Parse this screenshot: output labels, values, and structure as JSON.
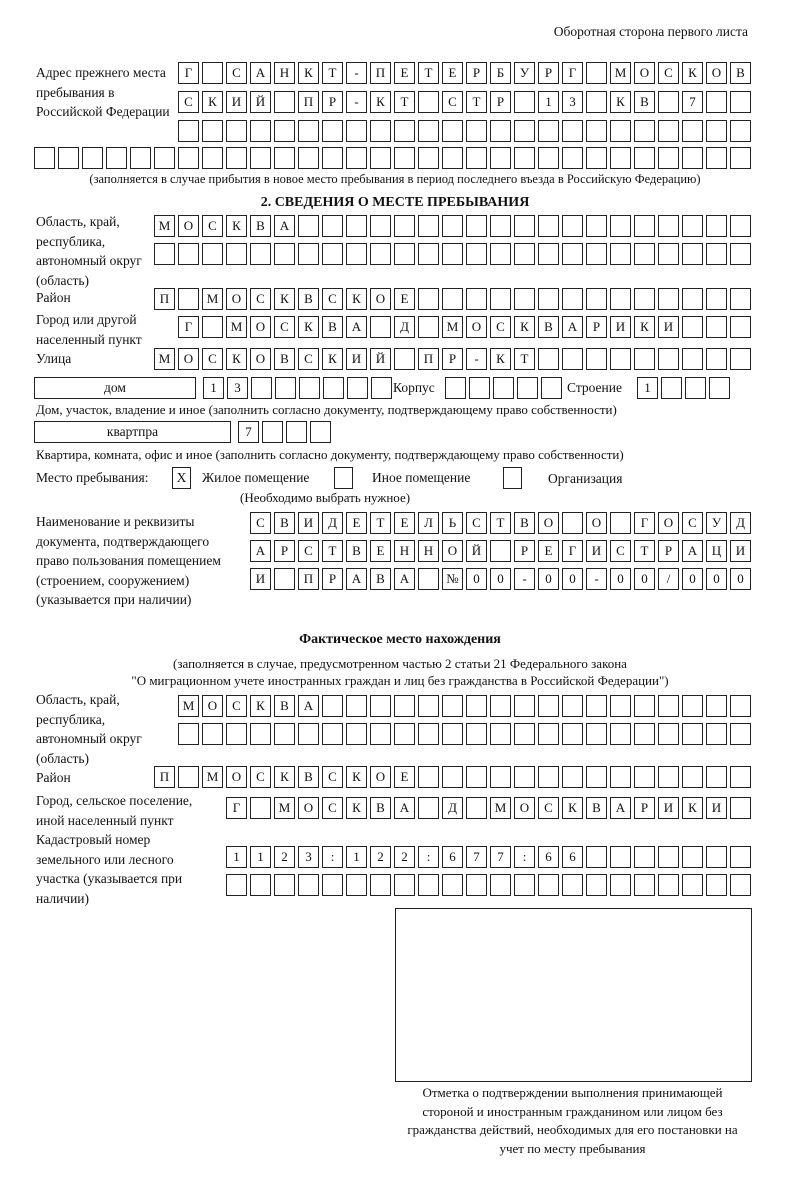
{
  "header": {
    "page_side": "Оборотная сторона первого листа"
  },
  "previous_address": {
    "label": "Адрес прежнего места пребывания в Российской Федерации",
    "rows": [
      [
        "Г",
        "",
        "С",
        "А",
        "Н",
        "К",
        "Т",
        "-",
        "П",
        "Е",
        "Т",
        "Е",
        "Р",
        "Б",
        "У",
        "Р",
        "Г",
        "",
        "М",
        "О",
        "С",
        "К",
        "О",
        "В"
      ],
      [
        "С",
        "К",
        "И",
        "Й",
        "",
        "П",
        "Р",
        "-",
        "К",
        "Т",
        "",
        "С",
        "Т",
        "Р",
        "",
        "1",
        "3",
        "",
        "К",
        "В",
        "",
        "7",
        "",
        ""
      ],
      [
        "",
        "",
        "",
        "",
        "",
        "",
        "",
        "",
        "",
        "",
        "",
        "",
        "",
        "",
        "",
        "",
        "",
        "",
        "",
        "",
        "",
        "",
        "",
        ""
      ],
      [
        "",
        "",
        "",
        "",
        "",
        "",
        "",
        "",
        "",
        "",
        "",
        "",
        "",
        "",
        "",
        "",
        "",
        "",
        "",
        "",
        "",
        "",
        "",
        "",
        "",
        "",
        "",
        "",
        "",
        ""
      ]
    ],
    "note": "(заполняется в случае прибытия в новое место пребывания в период последнего въезда в Российскую Федерацию)"
  },
  "section2": {
    "title": "2. СВЕДЕНИЯ О МЕСТЕ ПРЕБЫВАНИЯ",
    "region_label": "Область, край, республика, автономный округ (область)",
    "region_rows": [
      [
        "М",
        "О",
        "С",
        "К",
        "В",
        "А",
        "",
        "",
        "",
        "",
        "",
        "",
        "",
        "",
        "",
        "",
        "",
        "",
        "",
        "",
        "",
        "",
        "",
        "",
        ""
      ],
      [
        "",
        "",
        "",
        "",
        "",
        "",
        "",
        "",
        "",
        "",
        "",
        "",
        "",
        "",
        "",
        "",
        "",
        "",
        "",
        "",
        "",
        "",
        "",
        "",
        ""
      ]
    ],
    "district_label": "Район",
    "district_row": [
      "П",
      "",
      "М",
      "О",
      "С",
      "К",
      "В",
      "С",
      "К",
      "О",
      "Е",
      "",
      "",
      "",
      "",
      "",
      "",
      "",
      "",
      "",
      "",
      "",
      "",
      "",
      ""
    ],
    "city_label": "Город или другой населенный пункт",
    "city_row": [
      "Г",
      "",
      "М",
      "О",
      "С",
      "К",
      "В",
      "А",
      "",
      "Д",
      "",
      "М",
      "О",
      "С",
      "К",
      "В",
      "А",
      "Р",
      "И",
      "К",
      "И",
      "",
      "",
      ""
    ],
    "street_label": "Улица",
    "street_row": [
      "М",
      "О",
      "С",
      "К",
      "О",
      "В",
      "С",
      "К",
      "И",
      "Й",
      "",
      "П",
      "Р",
      "-",
      "К",
      "Т",
      "",
      "",
      "",
      "",
      "",
      "",
      "",
      "",
      ""
    ],
    "house_type": "дом",
    "house_cells": [
      "1",
      "3",
      "",
      "",
      "",
      "",
      "",
      ""
    ],
    "korpus_label": "Корпус",
    "korpus_cells": [
      "",
      "",
      "",
      "",
      ""
    ],
    "building_label": "Строение",
    "building_cells": [
      "1",
      "",
      "",
      ""
    ],
    "house_note": "Дом, участок, владение и иное (заполнить согласно документу, подтверждающему право собственности)",
    "flat_type": "квартпра",
    "flat_cells": [
      "7",
      "",
      "",
      ""
    ],
    "flat_note": "Квартира, комната, офис и иное (заполнить согласно документу, подтверждающему право собственности)",
    "stay_label": "Место пребывания:",
    "stay_options": [
      {
        "label": "Жилое помещение",
        "mark": "Х"
      },
      {
        "label": "Иное помещение",
        "mark": ""
      },
      {
        "label": "Организация",
        "mark": ""
      }
    ],
    "stay_hint": "(Необходимо выбрать нужное)",
    "doc_label": "Наименование и реквизиты документа, подтверждающего право пользования помещением (строением, сооружением) (указывается при наличии)",
    "doc_rows": [
      [
        "С",
        "В",
        "И",
        "Д",
        "Е",
        "Т",
        "Е",
        "Л",
        "Ь",
        "С",
        "Т",
        "В",
        "О",
        "",
        "О",
        "",
        "Г",
        "О",
        "С",
        "У",
        "Д"
      ],
      [
        "А",
        "Р",
        "С",
        "Т",
        "В",
        "Е",
        "Н",
        "Н",
        "О",
        "Й",
        "",
        "Р",
        "Е",
        "Г",
        "И",
        "С",
        "Т",
        "Р",
        "А",
        "Ц",
        "И"
      ],
      [
        "И",
        "",
        "П",
        "Р",
        "А",
        "В",
        "А",
        "",
        "№",
        "0",
        "0",
        "-",
        "0",
        "0",
        "-",
        "0",
        "0",
        "/",
        "0",
        "0",
        "0"
      ]
    ]
  },
  "actual": {
    "title": "Фактическое место нахождения",
    "note1": "(заполняется в случае, предусмотренном частью 2 статьи 21 Федерального закона",
    "note2": "\"О миграционном учете иностранных граждан и лиц без гражданства в Российской Федерации\")",
    "region_label": "Область, край, республика, автономный округ (область)",
    "region_rows": [
      [
        "М",
        "О",
        "С",
        "К",
        "В",
        "А",
        "",
        "",
        "",
        "",
        "",
        "",
        "",
        "",
        "",
        "",
        "",
        "",
        "",
        "",
        "",
        "",
        "",
        ""
      ],
      [
        "",
        "",
        "",
        "",
        "",
        "",
        "",
        "",
        "",
        "",
        "",
        "",
        "",
        "",
        "",
        "",
        "",
        "",
        "",
        "",
        "",
        "",
        "",
        ""
      ]
    ],
    "district_label": "Район",
    "district_row": [
      "П",
      "",
      "М",
      "О",
      "С",
      "К",
      "В",
      "С",
      "К",
      "О",
      "Е",
      "",
      "",
      "",
      "",
      "",
      "",
      "",
      "",
      "",
      "",
      "",
      "",
      "",
      ""
    ],
    "city_label": "Город, сельское поселение, иной населенный пункт",
    "city_row": [
      "Г",
      "",
      "М",
      "О",
      "С",
      "К",
      "В",
      "А",
      "",
      "Д",
      "",
      "М",
      "О",
      "С",
      "К",
      "В",
      "А",
      "Р",
      "И",
      "К",
      "И",
      ""
    ],
    "cadastre_label": "Кадастровый номер земельного или лесного участка (указывается при наличии)",
    "cadastre_rows": [
      [
        "1",
        "1",
        "2",
        "3",
        ":",
        "1",
        "2",
        "2",
        ":",
        "6",
        "7",
        "7",
        ":",
        "6",
        "6",
        "",
        "",
        "",
        "",
        "",
        "",
        ""
      ],
      [
        "",
        "",
        "",
        "",
        "",
        "",
        "",
        "",
        "",
        "",
        "",
        "",
        "",
        "",
        "",
        "",
        "",
        "",
        "",
        "",
        "",
        ""
      ]
    ]
  },
  "confirmation": {
    "caption": "Отметка о подтверждении выполнения принимающей стороной и иностранным гражданином или лицом без гражданства действий, необходимых для его постановки на учет по месту пребывания"
  }
}
